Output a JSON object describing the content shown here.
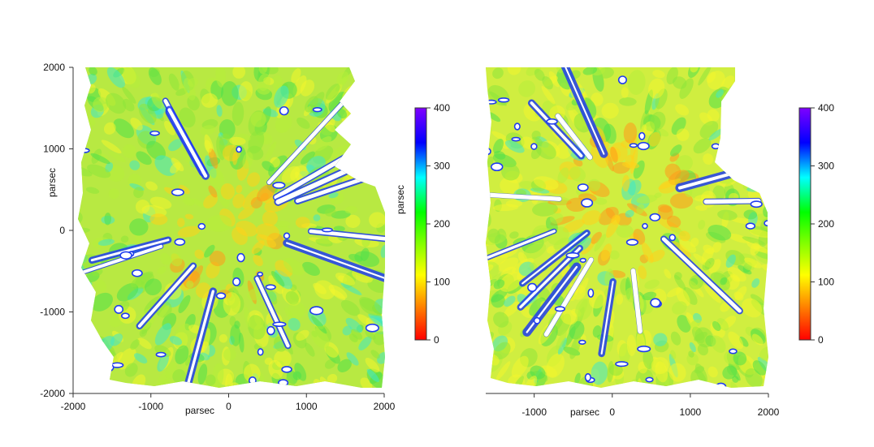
{
  "chart_data": [
    {
      "type": "heatmap",
      "xlabel": "parsec",
      "ylabel": "parsec",
      "xlim": [
        -2000,
        2000
      ],
      "ylim": [
        -2000,
        2000
      ],
      "x_ticks": [
        -2000,
        -1000,
        0,
        1000,
        2000
      ],
      "y_ticks": [
        2000,
        1000,
        0,
        -1000,
        -2000
      ],
      "x_tick_labels": [
        "-2000",
        "-1000",
        "0",
        "1000",
        "2000"
      ],
      "y_tick_labels": [
        "2000",
        "1000",
        "0",
        "-1000",
        "-2000"
      ],
      "colorbar": {
        "ylabel": "parsec",
        "range": [
          0,
          400
        ],
        "ticks": [
          400,
          300,
          200,
          100,
          0
        ],
        "tick_labels": [
          "400",
          "300",
          "200",
          "100",
          "0"
        ],
        "colors": [
          "#ff0000",
          "#ff7f00",
          "#ffff00",
          "#7fff00",
          "#00ff00",
          "#00ffff",
          "#0000ff",
          "#7f00ff"
        ]
      },
      "grid": false
    },
    {
      "type": "heatmap",
      "xlabel": "parsec",
      "ylabel": "",
      "xlim": [
        -1600,
        2000
      ],
      "ylim": [
        -2000,
        2000
      ],
      "x_ticks": [
        -1000,
        0,
        1000,
        2000
      ],
      "x_tick_labels": [
        "-1000",
        "0",
        "1000",
        "2000"
      ],
      "colorbar": {
        "range": [
          0,
          400
        ],
        "ticks": [
          400,
          300,
          200,
          100,
          0
        ],
        "tick_labels": [
          "400",
          "300",
          "200",
          "100",
          "0"
        ],
        "colors": [
          "#ff0000",
          "#ff7f00",
          "#ffff00",
          "#7fff00",
          "#00ff00",
          "#00ffff",
          "#0000ff",
          "#7f00ff"
        ]
      },
      "grid": false
    }
  ]
}
